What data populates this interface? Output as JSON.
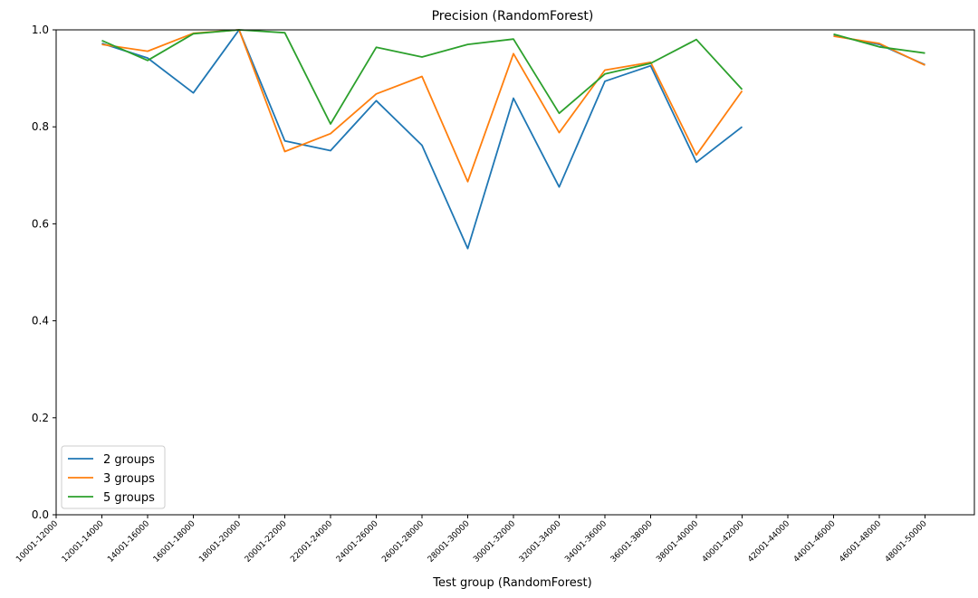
{
  "chart_data": {
    "type": "line",
    "title": "Precision (RandomForest)",
    "xlabel": "Test group (RandomForest)",
    "ylabel": "",
    "ylim": [
      0.0,
      1.0
    ],
    "yticks": [
      "0.0",
      "0.2",
      "0.4",
      "0.6",
      "0.8",
      "1.0"
    ],
    "categories": [
      "10001-12000",
      "12001-14000",
      "14001-16000",
      "16001-18000",
      "18001-20000",
      "20001-22000",
      "22001-24000",
      "24001-26000",
      "26001-28000",
      "28001-30000",
      "30001-32000",
      "32001-34000",
      "34001-36000",
      "36001-38000",
      "38001-40000",
      "40001-42000",
      "42001-44000",
      "44001-46000",
      "46001-48000",
      "48001-50000"
    ],
    "grid": false,
    "legend_position": "lower-left",
    "series": [
      {
        "name": "2 groups",
        "color": "#1f77b4",
        "values": [
          null,
          0.972,
          0.942,
          0.87,
          1.0,
          0.771,
          0.751,
          0.854,
          0.762,
          0.549,
          0.859,
          0.676,
          0.894,
          0.926,
          0.727,
          0.8,
          null,
          0.988,
          0.97,
          0.928
        ]
      },
      {
        "name": "3 groups",
        "color": "#ff7f0e",
        "values": [
          null,
          0.97,
          0.956,
          0.993,
          1.0,
          0.749,
          0.786,
          0.868,
          0.904,
          0.687,
          0.951,
          0.788,
          0.917,
          0.933,
          0.742,
          0.874,
          null,
          0.987,
          0.972,
          0.927
        ]
      },
      {
        "name": "5 groups",
        "color": "#2ca02c",
        "values": [
          null,
          0.978,
          0.937,
          0.992,
          1.0,
          0.994,
          0.806,
          0.964,
          0.944,
          0.97,
          0.981,
          0.828,
          0.909,
          0.931,
          0.98,
          0.877,
          null,
          0.991,
          0.965,
          0.952
        ]
      }
    ]
  }
}
